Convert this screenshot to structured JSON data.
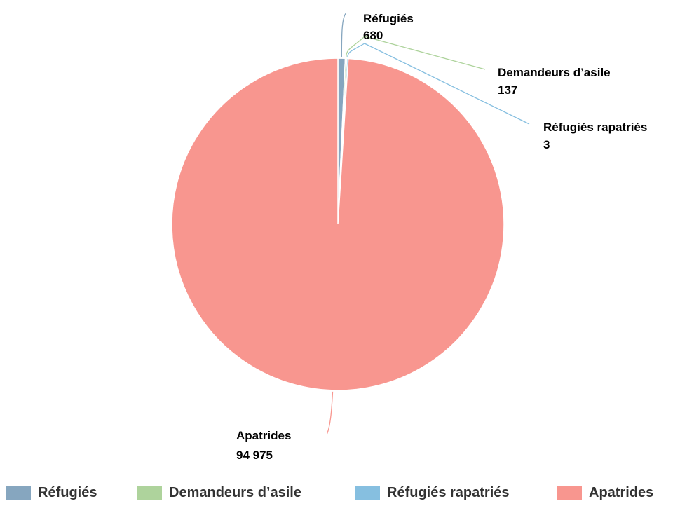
{
  "chart_data": {
    "type": "pie",
    "title": "",
    "categories": [
      "Réfugiés",
      "Demandeurs d’asile",
      "Réfugiés rapatriés",
      "Apatrides"
    ],
    "values": [
      680,
      137,
      3,
      94975
    ],
    "value_labels": [
      "680",
      "137",
      "3",
      "94 975"
    ],
    "colors": [
      "#86a6bf",
      "#aed39c",
      "#86bfe0",
      "#f8968f"
    ],
    "legend_position": "bottom",
    "start_angle_deg": 0,
    "direction": "clockwise"
  }
}
